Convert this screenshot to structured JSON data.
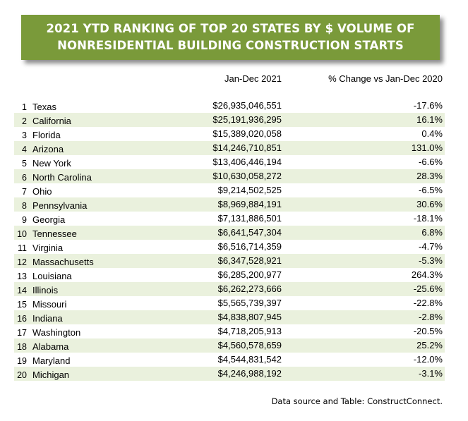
{
  "title": {
    "line1": "2021 YTD RANKING OF TOP 20 STATES BY $ VOLUME OF",
    "line2": "NONRESIDENTIAL BUILDING CONSTRUCTION STARTS"
  },
  "headers": {
    "value": "Jan-Dec 2021",
    "change": "% Change vs Jan-Dec 2020"
  },
  "rows": [
    {
      "rank": "1",
      "state": "Texas",
      "value": "$26,935,046,551",
      "change": "-17.6%"
    },
    {
      "rank": "2",
      "state": "California",
      "value": "$25,191,936,295",
      "change": "16.1%"
    },
    {
      "rank": "3",
      "state": "Florida",
      "value": "$15,389,020,058",
      "change": "0.4%"
    },
    {
      "rank": "4",
      "state": "Arizona",
      "value": "$14,246,710,851",
      "change": "131.0%"
    },
    {
      "rank": "5",
      "state": "New York",
      "value": "$13,406,446,194",
      "change": "-6.6%"
    },
    {
      "rank": "6",
      "state": "North Carolina",
      "value": "$10,630,058,272",
      "change": "28.3%"
    },
    {
      "rank": "7",
      "state": "Ohio",
      "value": "$9,214,502,525",
      "change": "-6.5%"
    },
    {
      "rank": "8",
      "state": "Pennsylvania",
      "value": "$8,969,884,191",
      "change": "30.6%"
    },
    {
      "rank": "9",
      "state": "Georgia",
      "value": "$7,131,886,501",
      "change": "-18.1%"
    },
    {
      "rank": "10",
      "state": "Tennessee",
      "value": "$6,641,547,304",
      "change": "6.8%"
    },
    {
      "rank": "11",
      "state": "Virginia",
      "value": "$6,516,714,359",
      "change": "-4.7%"
    },
    {
      "rank": "12",
      "state": "Massachusetts",
      "value": "$6,347,528,921",
      "change": "-5.3%"
    },
    {
      "rank": "13",
      "state": "Louisiana",
      "value": "$6,285,200,977",
      "change": "264.3%"
    },
    {
      "rank": "14",
      "state": "Illinois",
      "value": "$6,262,273,666",
      "change": "-25.6%"
    },
    {
      "rank": "15",
      "state": "Missouri",
      "value": "$5,565,739,397",
      "change": "-22.8%"
    },
    {
      "rank": "16",
      "state": "Indiana",
      "value": "$4,838,807,945",
      "change": "-2.8%"
    },
    {
      "rank": "17",
      "state": "Washington",
      "value": "$4,718,205,913",
      "change": "-20.5%"
    },
    {
      "rank": "18",
      "state": "Alabama",
      "value": "$4,560,578,659",
      "change": "25.2%"
    },
    {
      "rank": "19",
      "state": "Maryland",
      "value": "$4,544,831,542",
      "change": "-12.0%"
    },
    {
      "rank": "20",
      "state": "Michigan",
      "value": "$4,246,988,192",
      "change": "-3.1%"
    }
  ],
  "footer": "Data source and Table: ConstructConnect.",
  "colors": {
    "banner": "#7a9a3a",
    "banner_text": "#ffffff",
    "row_shade": "#eaf1dd"
  }
}
